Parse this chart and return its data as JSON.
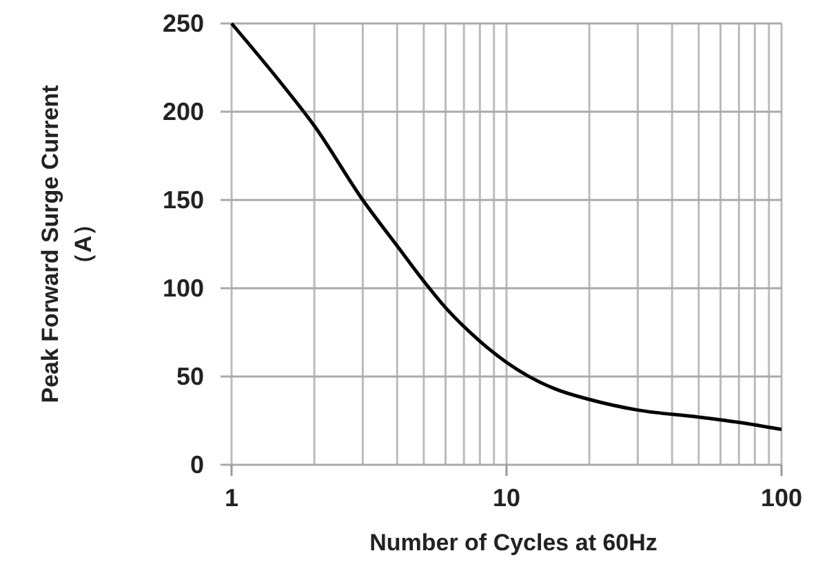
{
  "chart_data": {
    "type": "line",
    "xlabel": "Number of Cycles at 60Hz",
    "ylabel": "Peak Forward Surge Current\n（A）",
    "log": "x",
    "x": [
      1,
      1.5,
      2,
      3,
      4,
      5,
      6,
      8,
      10,
      15,
      20,
      30,
      50,
      70,
      100
    ],
    "series": [
      {
        "color": "#000000",
        "values": [
          250,
          217,
          192,
          150,
          124,
          104,
          89,
          70,
          58,
          43,
          37,
          31,
          27,
          24,
          20
        ]
      }
    ],
    "xlim": [
      1,
      100
    ],
    "xticks": [
      1,
      10,
      100
    ],
    "ylim": [
      0,
      250
    ],
    "yticks": [
      0,
      50,
      100,
      150,
      200,
      250
    ],
    "grid": true,
    "marker": "none",
    "line_style": "solid"
  }
}
